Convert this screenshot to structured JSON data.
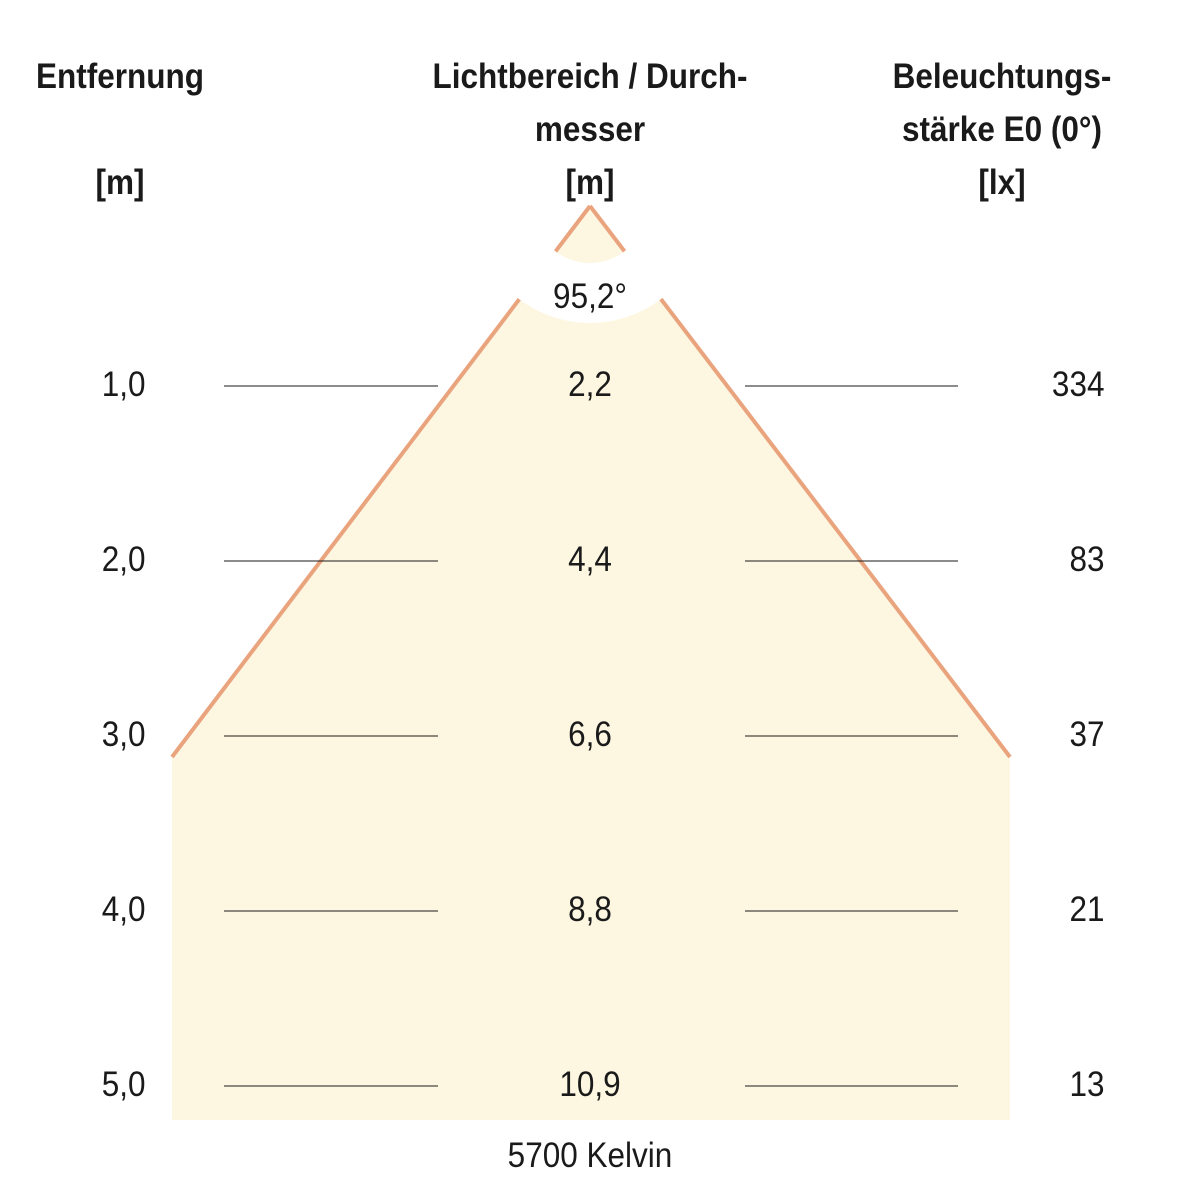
{
  "headers": {
    "distance": {
      "line1": "Entfernung",
      "unit": "[m]"
    },
    "diameter": {
      "line1": "Lichtbereich / Durch-",
      "line2": "messer",
      "unit": "[m]"
    },
    "illuminance": {
      "line1": "Beleuchtungs-",
      "line2": "stärke E0 (0°)",
      "unit": "[lx]"
    }
  },
  "beam_angle": "95,2°",
  "rows": [
    {
      "distance": "1,0",
      "diameter": "2,2",
      "illuminance": "334"
    },
    {
      "distance": "2,0",
      "diameter": "4,4",
      "illuminance": "83"
    },
    {
      "distance": "3,0",
      "diameter": "6,6",
      "illuminance": "37"
    },
    {
      "distance": "4,0",
      "diameter": "8,8",
      "illuminance": "21"
    },
    {
      "distance": "5,0",
      "diameter": "10,9",
      "illuminance": "13"
    }
  ],
  "color_temperature": "5700 Kelvin",
  "colors": {
    "beam_fill": "#fdf6e0",
    "beam_edge": "#e9a47e",
    "text": "#1a1a1a"
  }
}
